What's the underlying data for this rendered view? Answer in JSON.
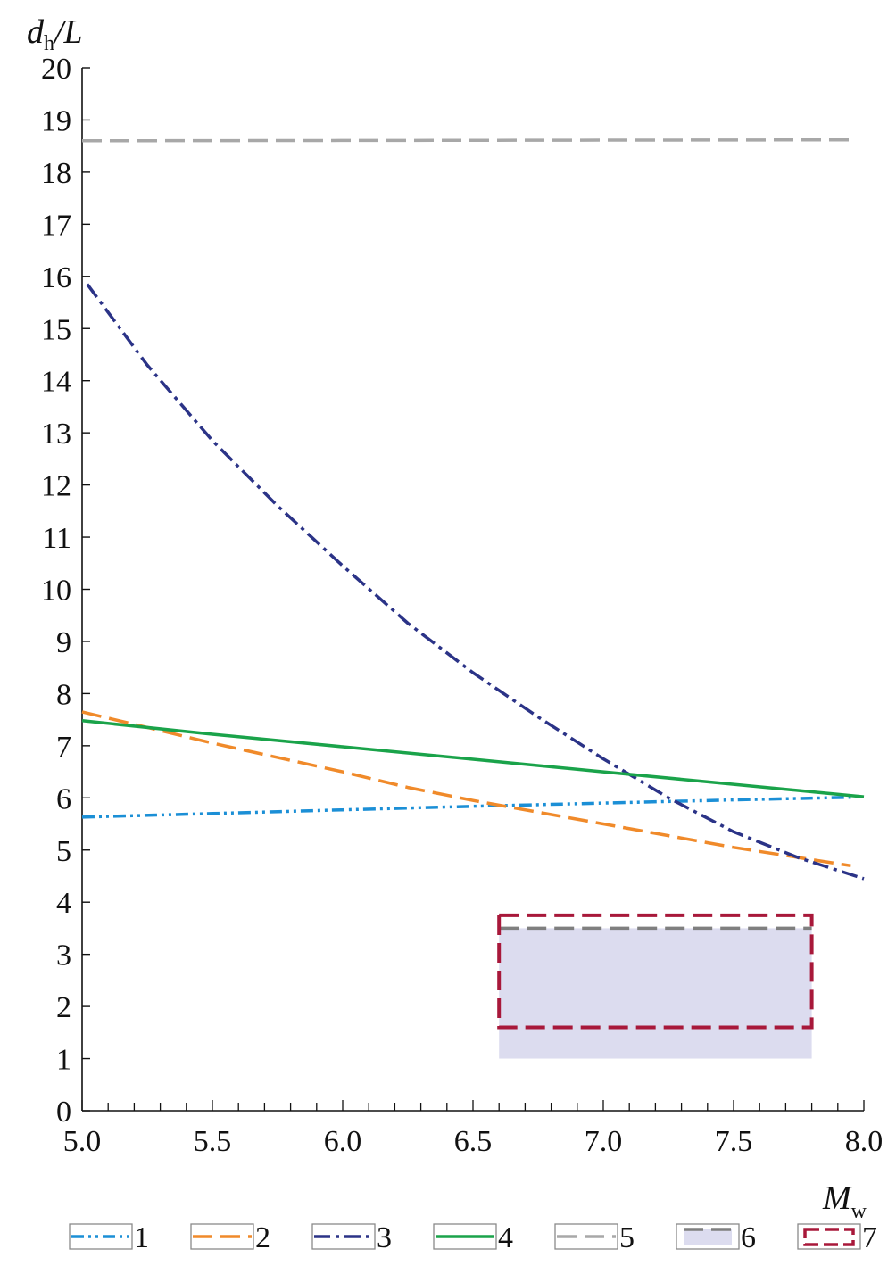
{
  "chart_data": {
    "type": "line",
    "ylabel": {
      "main": "d",
      "sub": "h",
      "rest": "/L"
    },
    "xlabel": {
      "main": "M",
      "sub": "w"
    },
    "xlim": [
      5.0,
      8.0
    ],
    "ylim": [
      0,
      20
    ],
    "x_ticks": [
      "5.0",
      "5.5",
      "6.0",
      "6.5",
      "7.0",
      "7.5",
      "8.0"
    ],
    "y_ticks": [
      "0",
      "1",
      "2",
      "3",
      "4",
      "5",
      "6",
      "7",
      "8",
      "9",
      "10",
      "11",
      "12",
      "13",
      "14",
      "15",
      "16",
      "17",
      "18",
      "19",
      "20"
    ],
    "grid": false,
    "series": [
      {
        "name": "1",
        "color": "#1b8fd6",
        "style": "dash-dot-dot",
        "x": [
          5.0,
          5.5,
          6.0,
          6.5,
          7.0,
          7.5,
          7.95
        ],
        "y": [
          5.63,
          5.7,
          5.77,
          5.84,
          5.9,
          5.96,
          6.01
        ]
      },
      {
        "name": "2",
        "color": "#f08a2a",
        "style": "dashed",
        "x": [
          5.0,
          5.5,
          6.0,
          6.25,
          6.5,
          7.0,
          7.5,
          7.95
        ],
        "y": [
          7.65,
          7.05,
          6.5,
          6.2,
          5.95,
          5.5,
          5.05,
          4.7
        ]
      },
      {
        "name": "3",
        "color": "#2b3387",
        "style": "dash-dot",
        "x": [
          5.02,
          5.25,
          5.5,
          5.75,
          6.0,
          6.25,
          6.5,
          6.75,
          7.0,
          7.25,
          7.5,
          7.75,
          8.0
        ],
        "y": [
          15.85,
          14.3,
          12.85,
          11.6,
          10.45,
          9.35,
          8.4,
          7.55,
          6.75,
          6.0,
          5.35,
          4.85,
          4.45
        ]
      },
      {
        "name": "4",
        "color": "#1aa34a",
        "style": "solid",
        "x": [
          5.0,
          5.5,
          6.0,
          6.5,
          7.0,
          7.5,
          8.0
        ],
        "y": [
          7.48,
          7.22,
          6.98,
          6.74,
          6.5,
          6.26,
          6.02
        ]
      },
      {
        "name": "5",
        "color": "#a8a8a8",
        "style": "dashed",
        "x": [
          5.0,
          7.95
        ],
        "y": [
          18.6,
          18.62
        ]
      },
      {
        "name": "6",
        "color": "#dcdcef",
        "line_color": "#7f7f7f",
        "style": "shaded-region",
        "x_range": [
          6.6,
          7.8
        ],
        "y_range": [
          1.0,
          3.5
        ]
      },
      {
        "name": "7",
        "color": "#a8183a",
        "style": "dashed-rectangle",
        "x_range": [
          6.6,
          7.8
        ],
        "y_range": [
          1.6,
          3.75
        ]
      }
    ],
    "legend": [
      "1",
      "2",
      "3",
      "4",
      "5",
      "6",
      "7"
    ],
    "legend_position": "bottom"
  }
}
